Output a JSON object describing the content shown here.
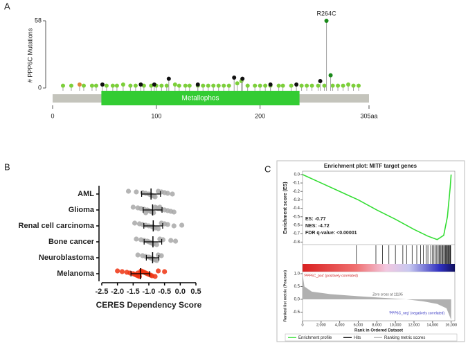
{
  "panels": [
    "A",
    "B",
    "C"
  ],
  "chart_data": [
    {
      "type": "lollipop",
      "ylabel": "# PPP6C Mutations",
      "annotation": "R264C",
      "xlim": [
        0,
        305
      ],
      "ylim": [
        0,
        58
      ],
      "xticks": [
        0,
        100,
        200,
        {
          "value": 305,
          "label": "305aa"
        }
      ],
      "yticks": [
        0,
        58
      ],
      "domains": [
        {
          "name": "Metallophos",
          "start": 47,
          "end": 238,
          "color": "#33cc33"
        }
      ],
      "series": [
        {
          "color": "#7ccf3a",
          "x": [
            10,
            18,
            30,
            38,
            42,
            52,
            58,
            62,
            68,
            75,
            80,
            88,
            95,
            100,
            105,
            110,
            118,
            122,
            128,
            132,
            140,
            145,
            150,
            155,
            160,
            165,
            170,
            178,
            182,
            188,
            195,
            200,
            205,
            210,
            218,
            222,
            230,
            240,
            245,
            250,
            256,
            262,
            270,
            275,
            280,
            285,
            290,
            295
          ],
          "values": [
            2,
            2,
            2,
            2,
            2,
            2,
            2,
            2,
            3,
            2,
            2,
            2,
            2,
            2,
            2,
            2,
            3,
            2,
            2,
            2,
            2,
            2,
            2,
            2,
            2,
            2,
            2,
            4,
            6,
            2,
            2,
            2,
            2,
            2,
            2,
            2,
            2,
            2,
            2,
            2,
            2,
            2,
            2,
            2,
            2,
            3,
            2,
            2
          ]
        },
        {
          "color": "#111111",
          "x": [
            48,
            85,
            98,
            112,
            140,
            175,
            183,
            210,
            235,
            258
          ],
          "values": [
            3,
            3,
            3,
            8,
            3,
            9,
            8,
            3,
            3,
            6
          ]
        },
        {
          "color": "#e0853a",
          "x": [
            26
          ],
          "values": [
            3
          ]
        },
        {
          "color": "#1a8a1a",
          "x": [
            264,
            268
          ],
          "values": [
            58,
            11
          ]
        }
      ]
    },
    {
      "type": "dotplot",
      "xlabel": "CERES Dependency Score",
      "categories": [
        "AML",
        "Glioma",
        "Renal cell carcinoma",
        "Bone cancer",
        "Neuroblastoma",
        "Melanoma"
      ],
      "colors": [
        "#a8a8a8",
        "#a8a8a8",
        "#a8a8a8",
        "#a8a8a8",
        "#a8a8a8",
        "#ee3311"
      ],
      "xlim": [
        -2.5,
        0.5
      ],
      "xticks": [
        -2.5,
        {
          "value": -2,
          "label": "-2.0"
        },
        -1.5,
        {
          "value": -1,
          "label": "-1.0"
        },
        -0.5,
        {
          "value": 0,
          "label": "0.0"
        },
        0.5
      ],
      "values": [
        [
          -1.65,
          -1.4,
          -1.2,
          -1.1,
          -1.0,
          -0.95,
          -0.9,
          -0.85,
          -0.8,
          -0.7,
          -0.6,
          -0.5,
          -0.4,
          -0.25
        ],
        [
          -1.5,
          -1.35,
          -1.25,
          -1.15,
          -1.05,
          -1.0,
          -0.95,
          -0.9,
          -0.85,
          -0.8,
          -0.75,
          -0.7,
          -0.6,
          -0.5,
          -0.4,
          -0.3,
          -0.2,
          -1.1,
          -0.65
        ],
        [
          -1.45,
          -1.3,
          -1.2,
          -1.1,
          -1.0,
          -0.9,
          -0.85,
          -0.8,
          -0.7,
          -0.6,
          -0.5,
          -0.4,
          0.05,
          -0.2
        ],
        [
          -1.4,
          -1.25,
          -1.15,
          -1.05,
          -1.0,
          -0.95,
          -0.9,
          -0.85,
          -0.75,
          -0.65,
          -0.55,
          -0.3,
          -0.15
        ],
        [
          -1.35,
          -1.2,
          -1.1,
          -1.0,
          -0.95,
          -0.9,
          -0.85,
          -0.8,
          -0.75,
          -0.7,
          -0.6
        ],
        [
          -2.0,
          -1.85,
          -1.7,
          -1.6,
          -1.5,
          -1.45,
          -1.4,
          -1.35,
          -1.3,
          -1.25,
          -1.2,
          -1.15,
          -1.1,
          -1.05,
          -1.0,
          -0.95,
          -0.9,
          -0.8,
          -0.7,
          -0.5,
          -1.25,
          -1.35
        ]
      ],
      "means": [
        -0.93,
        -0.88,
        -0.86,
        -0.87,
        -0.88,
        -1.27
      ],
      "errors": [
        0.3,
        0.3,
        0.3,
        0.28,
        0.2,
        0.3
      ]
    },
    {
      "type": "enrichment",
      "title": "Enrichment plot: MITF target genes",
      "ylabel": "Enrichment score (ES)",
      "xlabel": "Rank in Ordered Dataset",
      "annotations": [
        "ES: -0.77",
        "NES: -4.72",
        "FDR q-value: <0.00001"
      ],
      "color": "#33dd33",
      "xlim": [
        0,
        16400
      ],
      "xticks": [
        0,
        {
          "value": 2000,
          "label": "2,000"
        },
        {
          "value": 4000,
          "label": "4,000"
        },
        {
          "value": 6000,
          "label": "6,000"
        },
        {
          "value": 8000,
          "label": "8,000"
        },
        {
          "value": 10000,
          "label": "10,000"
        },
        {
          "value": 12000,
          "label": "12,000"
        },
        {
          "value": 14000,
          "label": "14,000"
        },
        {
          "value": 16000,
          "label": "16,000"
        }
      ],
      "ylim": [
        -0.83,
        0.04
      ],
      "yticks": [
        {
          "value": 0,
          "label": "0.0"
        },
        -0.1,
        -0.2,
        -0.3,
        -0.4,
        -0.5,
        -0.6,
        -0.7,
        -0.8
      ],
      "x": [
        0,
        2000,
        4000,
        6000,
        8000,
        10000,
        12000,
        13500,
        14500,
        15200,
        15600,
        15900,
        16000
      ],
      "values": [
        0,
        -0.1,
        -0.2,
        -0.3,
        -0.42,
        -0.53,
        -0.65,
        -0.73,
        -0.77,
        -0.72,
        -0.5,
        -0.15,
        0
      ],
      "hits": [
        5800,
        7900,
        8600,
        9300,
        10000,
        10800,
        11200,
        11800,
        12300,
        12700,
        13000,
        13300,
        13500,
        13800,
        14000,
        14150,
        14300,
        14450,
        14600,
        14700,
        14800,
        14900,
        15000,
        15100,
        15200,
        15300,
        15380,
        15450,
        15520,
        15600,
        15680,
        15750,
        15820,
        15900,
        15950
      ],
      "metric": {
        "x": [
          0,
          200,
          1000,
          3000,
          6000,
          9000,
          11195,
          13000,
          14500,
          15500,
          16000
        ],
        "values": [
          1.0,
          0.5,
          0.3,
          0.2,
          0.12,
          0.05,
          0,
          -0.08,
          -0.18,
          -0.35,
          -0.8
        ],
        "color": "#b0b0b0"
      },
      "metric_labels": [
        "'PPP6C_pos' (positively correlated)",
        "Zero cross at 11195",
        "'PPP6C_neg' (negatively correlated)"
      ],
      "y2label": "Ranked list metric (Pearson)",
      "y2lim": [
        -0.84,
        1.08
      ],
      "y2ticks": [
        {
          "value": 1,
          "label": "1.0"
        },
        0.5,
        {
          "value": 0,
          "label": "0.0"
        },
        -0.5
      ],
      "legend": [
        {
          "name": "Enrichment profile",
          "color": "#33dd33"
        },
        {
          "name": "Hits",
          "color": "#000000"
        },
        {
          "name": "Ranking metric scores",
          "color": "#b0b0b0"
        }
      ]
    }
  ]
}
